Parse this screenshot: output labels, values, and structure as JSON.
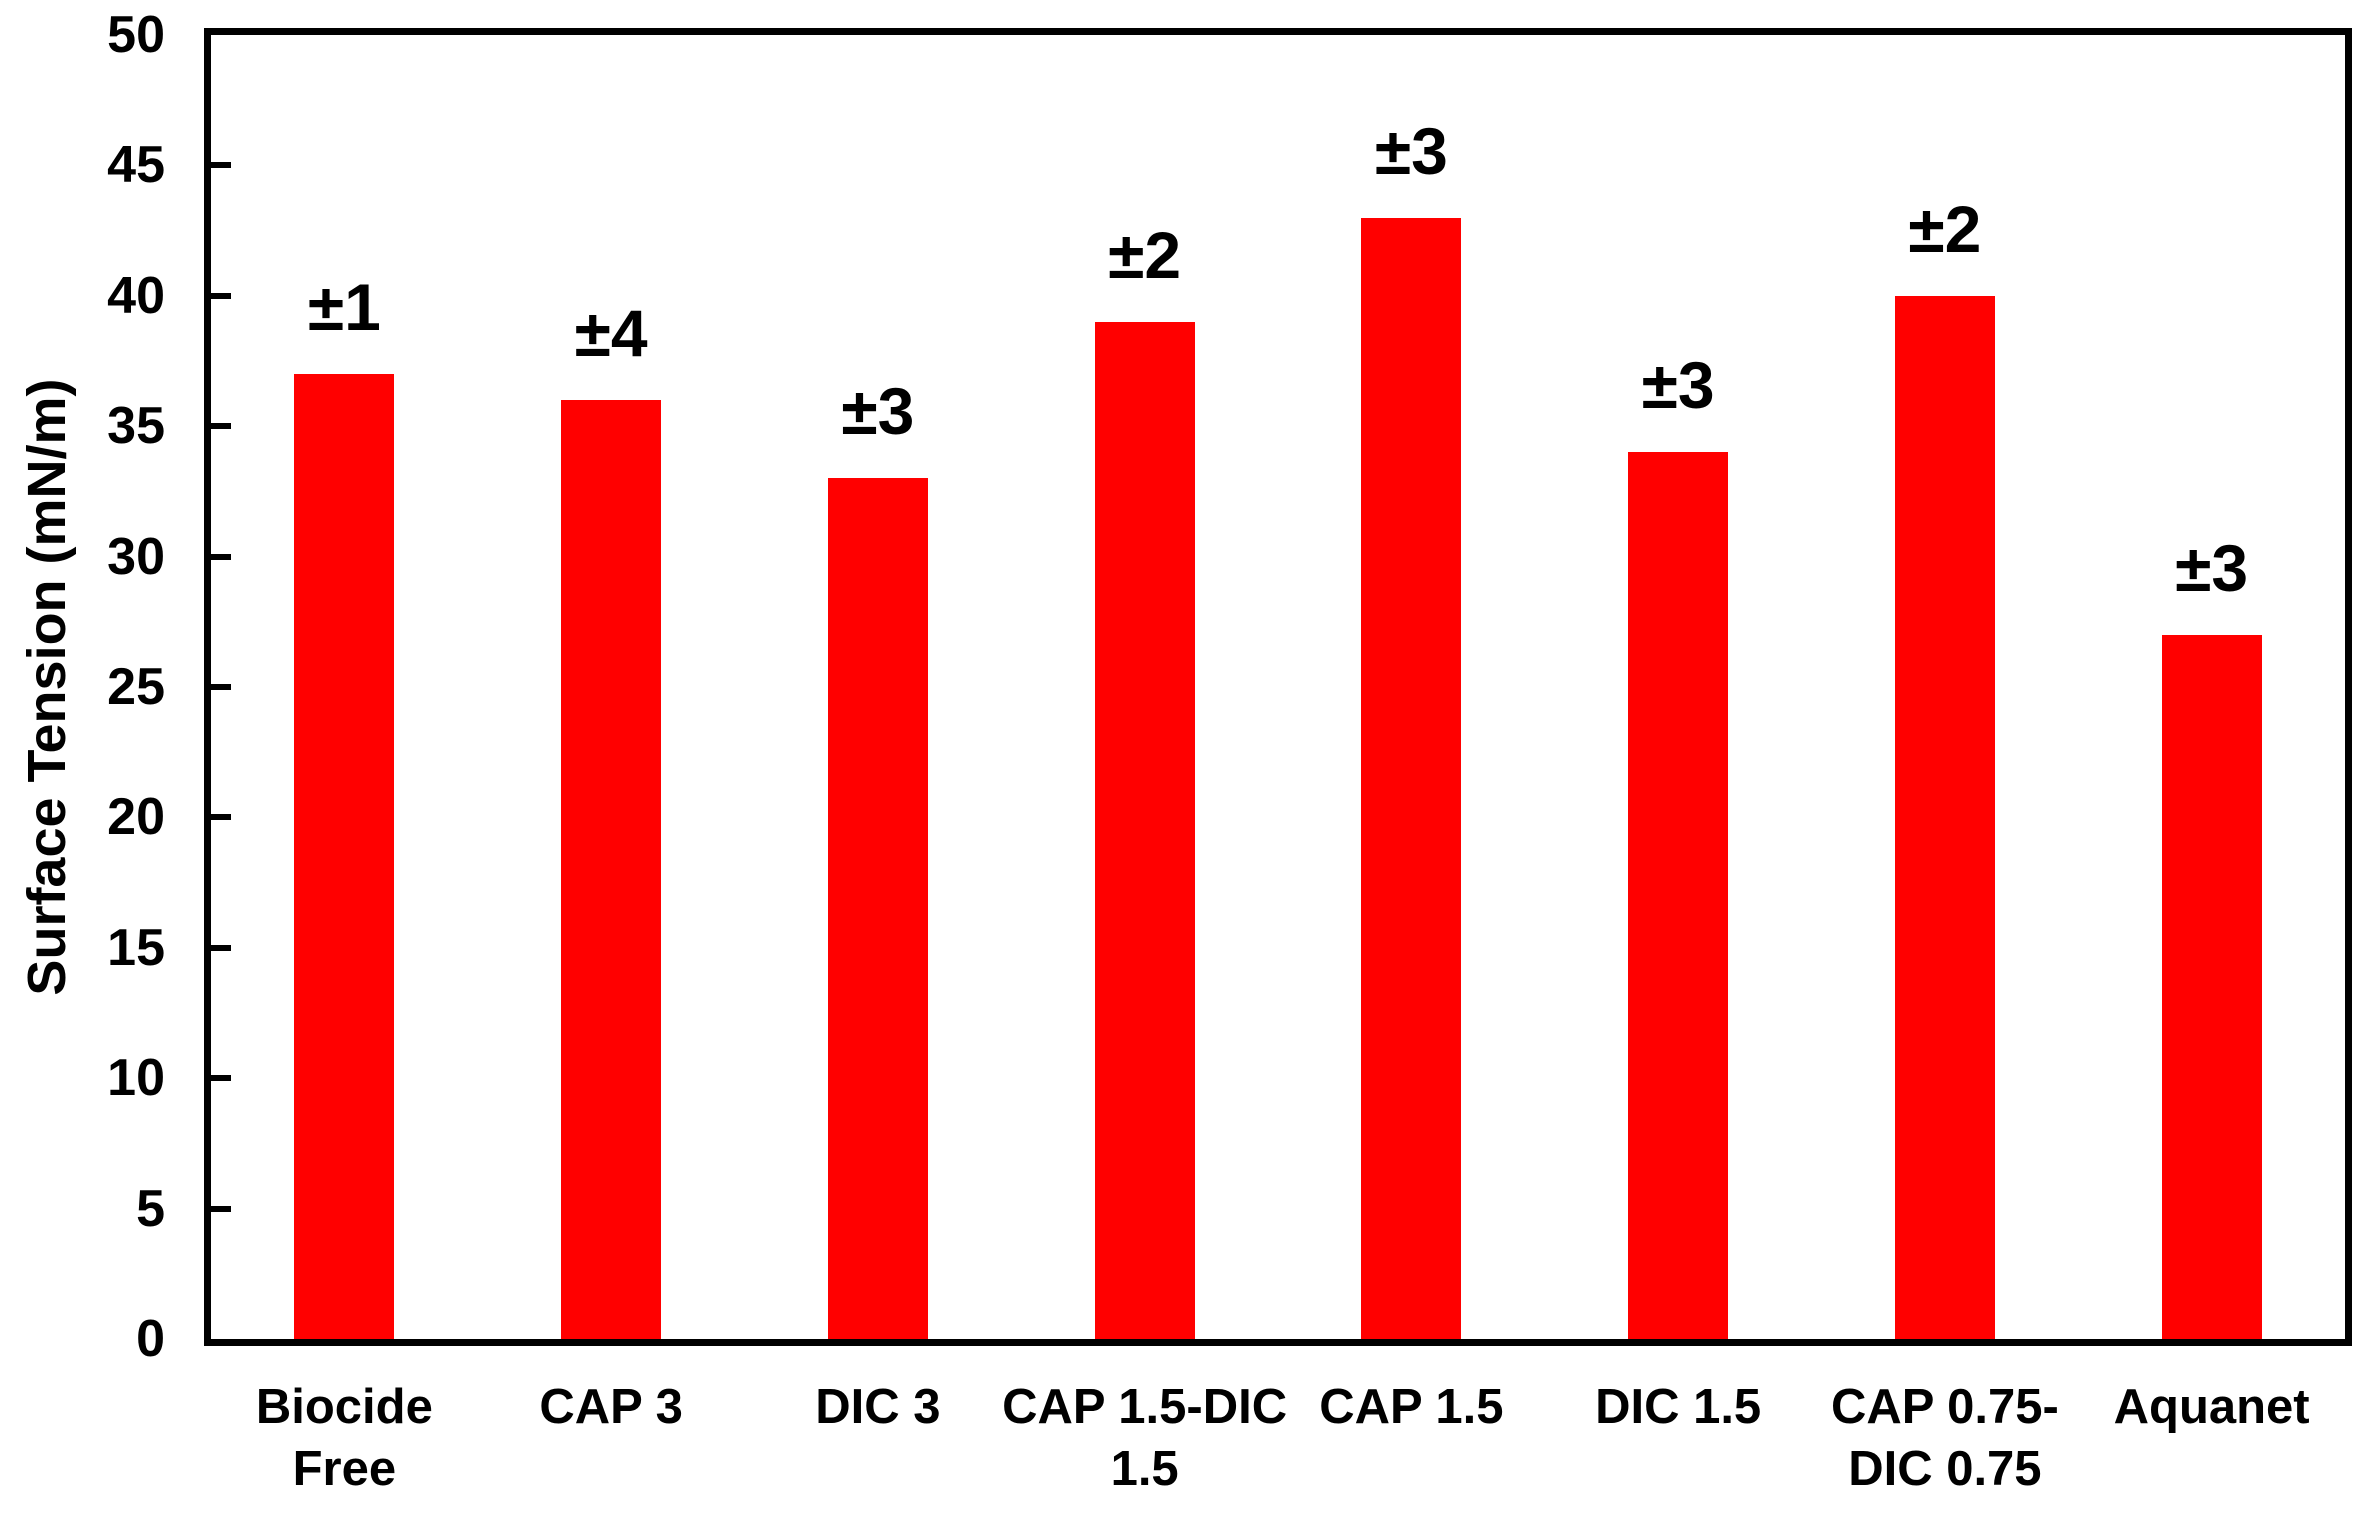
{
  "chart_data": {
    "type": "bar",
    "title": "",
    "xlabel": "",
    "ylabel": "Surface Tension (mN/m)",
    "ylim": [
      0,
      50
    ],
    "yticks": [
      0,
      5,
      10,
      15,
      20,
      25,
      30,
      35,
      40,
      45,
      50
    ],
    "grid": false,
    "legend": "none",
    "bar_color": "#ff0000",
    "axis_color": "#000000",
    "categories": [
      "Biocide Free",
      "CAP 3",
      "DIC 3",
      "CAP 1.5-DIC 1.5",
      "CAP 1.5",
      "DIC 1.5",
      "CAP 0.75-DIC 0.75",
      "Aquanet"
    ],
    "category_lines": [
      [
        "Biocide",
        "Free"
      ],
      [
        "CAP 3"
      ],
      [
        "DIC 3"
      ],
      [
        "CAP 1.5-DIC",
        "1.5"
      ],
      [
        "CAP 1.5"
      ],
      [
        "DIC 1.5"
      ],
      [
        "CAP 0.75-",
        "DIC 0.75"
      ],
      [
        "Aquanet"
      ]
    ],
    "values": [
      37,
      36,
      33,
      39,
      43,
      34,
      40,
      27
    ],
    "error_labels": [
      "±1",
      "±4",
      "±3",
      "±2",
      "±3",
      "±3",
      "±2",
      "±3"
    ]
  }
}
